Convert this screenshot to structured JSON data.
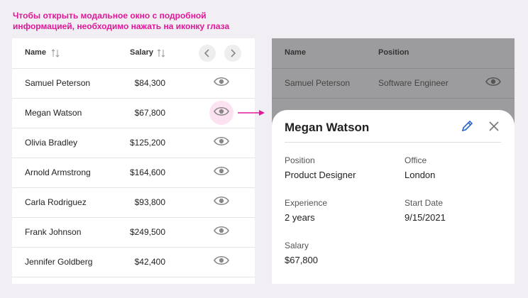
{
  "annotation": {
    "lines": [
      "Чтобы открыть модальное окно с подробной",
      "информацией, необходимо нажать на иконку глаза"
    ]
  },
  "table": {
    "headers": [
      "Name",
      "Salary"
    ],
    "rows": [
      [
        "Samuel Peterson",
        "$84,300"
      ],
      [
        "Megan Watson",
        "$67,800"
      ],
      [
        "Olivia Bradley",
        "$125,200"
      ],
      [
        "Arnold Armstrong",
        "$164,600"
      ],
      [
        "Carla Rodriguez",
        "$93,800"
      ],
      [
        "Frank Johnson",
        "$249,500"
      ],
      [
        "Jennifer Goldberg",
        "$42,400"
      ]
    ]
  },
  "background_table": {
    "headers": [
      "Name",
      "Position"
    ],
    "rows": [
      [
        "Samuel Peterson",
        "Software Engineer"
      ]
    ]
  },
  "modal": {
    "title": "Megan Watson",
    "fields": [
      {
        "label": "Position",
        "value": "Product Designer"
      },
      {
        "label": "Office",
        "value": "London"
      },
      {
        "label": "Experience",
        "value": "2 years"
      },
      {
        "label": "Start Date",
        "value": "9/15/2021"
      },
      {
        "label": "Salary",
        "value": "$67,800"
      }
    ]
  }
}
